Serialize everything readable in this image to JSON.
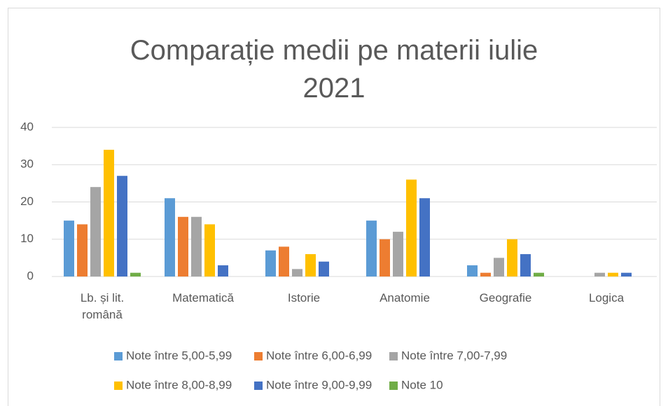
{
  "chart_data": {
    "type": "bar",
    "title": "Comparație medii pe materii iulie 2021",
    "categories": [
      "Lb. și lit. română",
      "Matematică",
      "Istorie",
      "Anatomie",
      "Geografie",
      "Logica"
    ],
    "series": [
      {
        "name": "Note între 5,00-5,99",
        "color": "#5b9bd5",
        "values": [
          15,
          21,
          7,
          15,
          3,
          0
        ]
      },
      {
        "name": "Note între 6,00-6,99",
        "color": "#ed7d31",
        "values": [
          14,
          16,
          8,
          10,
          1,
          0
        ]
      },
      {
        "name": "Note între 7,00-7,99",
        "color": "#a5a5a5",
        "values": [
          24,
          16,
          2,
          12,
          5,
          1
        ]
      },
      {
        "name": "Note între 8,00-8,99",
        "color": "#ffc000",
        "values": [
          34,
          14,
          6,
          26,
          10,
          1
        ]
      },
      {
        "name": "Note între 9,00-9,99",
        "color": "#4472c4",
        "values": [
          27,
          3,
          4,
          21,
          6,
          1
        ]
      },
      {
        "name": "Note 10",
        "color": "#70ad47",
        "values": [
          1,
          0,
          0,
          0,
          1,
          0
        ]
      }
    ],
    "ylim": [
      0,
      40
    ],
    "yticks": [
      0,
      10,
      20,
      30,
      40
    ],
    "grid": true,
    "legend": "bottom"
  }
}
